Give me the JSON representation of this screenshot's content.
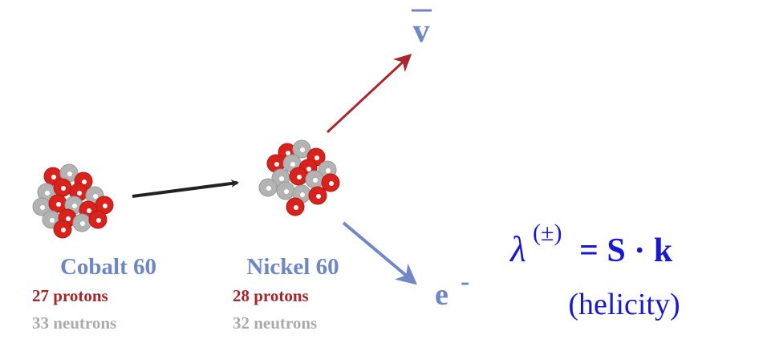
{
  "nodes": [
    {
      "name": "Cobalt 60",
      "protons": "27 protons",
      "neutrons": "33 neutrons"
    },
    {
      "name": "Nickel 60",
      "protons": "28 protons",
      "neutrons": "32 neutrons"
    }
  ],
  "products": {
    "antineutrino": "v",
    "electron": "e",
    "electron_charge": "-"
  },
  "formula": {
    "symbol": "λ",
    "superscript": "(±)",
    "rhs": "= S · k",
    "caption": "(helicity)"
  }
}
